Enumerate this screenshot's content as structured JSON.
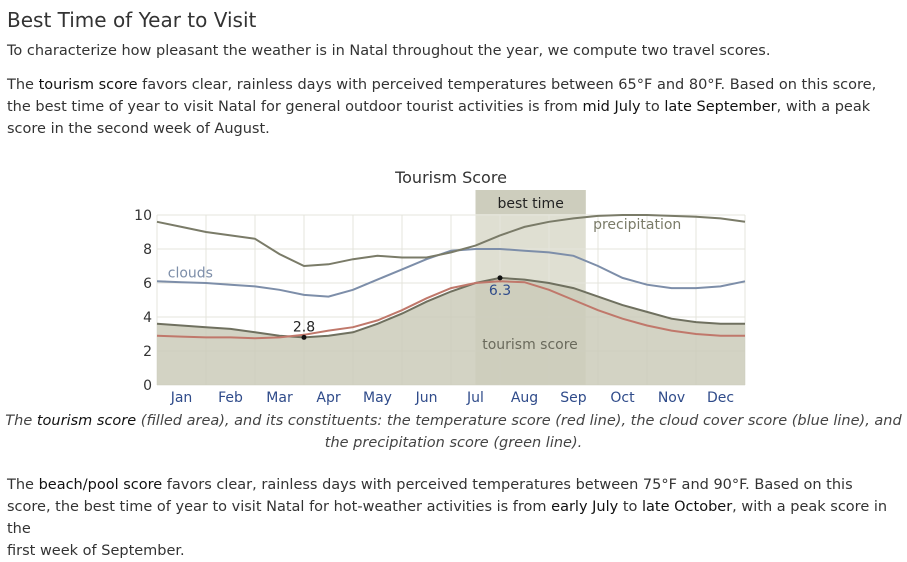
{
  "page": {
    "heading": "Best Time of Year to Visit",
    "intro": "To characterize how pleasant the weather is in Natal throughout the year, we compute two travel scores.",
    "tourism_paragraph": {
      "p1": "The ",
      "term": "tourism score",
      "p2": " favors clear, rainless days with perceived temperatures between 65°F and 80°F. Based on this score, the best time of year to visit Natal for general outdoor tourist activities is from ",
      "start": "mid July",
      "p3": " to ",
      "end": "late September",
      "p4": ", with a peak score in the second week of August."
    },
    "caption": {
      "p1": "The ",
      "term": "tourism score",
      "p2": " (filled area), and its constituents: the temperature score (red line), the cloud cover score (blue line), and the precipitation score (green line)."
    },
    "beach_paragraph": {
      "p1": "The ",
      "term": "beach/pool score",
      "p2": " favors clear, rainless days with perceived temperatures between 75°F and 90°F. Based on this score, the best time of year to visit Natal for hot-weather activities is from ",
      "start": "early July",
      "p3": " to ",
      "end": "late October",
      "p4": ", with a peak score in the",
      "p5": "first week of September."
    }
  },
  "chart_data": {
    "type": "area",
    "title": "Tourism Score",
    "months": [
      "Jan",
      "Feb",
      "Mar",
      "Apr",
      "May",
      "Jun",
      "Jul",
      "Aug",
      "Sep",
      "Oct",
      "Nov",
      "Dec"
    ],
    "ylim": [
      0,
      10
    ],
    "yticks": [
      0,
      2,
      4,
      6,
      8,
      10
    ],
    "x_range_months": [
      0,
      12
    ],
    "best_time": {
      "label": "best time",
      "start_month": 6.5,
      "end_month": 8.75
    },
    "series": [
      {
        "name": "tourism score",
        "role": "area",
        "color": "#6f705f",
        "fill": "#cbcbba",
        "x": [
          0,
          0.5,
          1,
          1.5,
          2,
          2.5,
          3,
          3.5,
          4,
          4.5,
          5,
          5.5,
          6,
          6.5,
          7,
          7.5,
          8,
          8.5,
          9,
          9.5,
          10,
          10.5,
          11,
          11.5,
          12
        ],
        "y": [
          3.6,
          3.5,
          3.4,
          3.3,
          3.1,
          2.9,
          2.8,
          2.9,
          3.1,
          3.6,
          4.2,
          4.9,
          5.5,
          6.0,
          6.3,
          6.2,
          6.0,
          5.7,
          5.2,
          4.7,
          4.3,
          3.9,
          3.7,
          3.6,
          3.6
        ]
      },
      {
        "name": "temperature score",
        "role": "line",
        "color": "#c0786b",
        "x": [
          0,
          0.5,
          1,
          1.5,
          2,
          2.5,
          3,
          3.5,
          4,
          4.5,
          5,
          5.5,
          6,
          6.5,
          7,
          7.5,
          8,
          8.5,
          9,
          9.5,
          10,
          10.5,
          11,
          11.5,
          12
        ],
        "y": [
          2.9,
          2.85,
          2.8,
          2.8,
          2.75,
          2.8,
          2.95,
          3.2,
          3.4,
          3.8,
          4.4,
          5.1,
          5.7,
          6.0,
          6.1,
          6.05,
          5.6,
          5.0,
          4.4,
          3.9,
          3.5,
          3.2,
          3.0,
          2.9,
          2.9
        ]
      },
      {
        "name": "clouds",
        "role": "line",
        "color": "#7d8ea9",
        "label": "clouds",
        "x": [
          0,
          0.5,
          1,
          1.5,
          2,
          2.5,
          3,
          3.5,
          4,
          4.5,
          5,
          5.5,
          6,
          6.5,
          7,
          7.5,
          8,
          8.5,
          9,
          9.5,
          10,
          10.5,
          11,
          11.5,
          12
        ],
        "y": [
          6.1,
          6.05,
          6.0,
          5.9,
          5.8,
          5.6,
          5.3,
          5.2,
          5.6,
          6.2,
          6.8,
          7.4,
          7.9,
          8.0,
          8.0,
          7.9,
          7.8,
          7.6,
          7.0,
          6.3,
          5.9,
          5.7,
          5.7,
          5.8,
          6.1
        ]
      },
      {
        "name": "precipitation",
        "role": "line",
        "color": "#7a7b68",
        "label": "precipitation",
        "x": [
          0,
          0.5,
          1,
          1.5,
          2,
          2.5,
          3,
          3.5,
          4,
          4.5,
          5,
          5.5,
          6,
          6.5,
          7,
          7.5,
          8,
          8.5,
          9,
          9.5,
          10,
          10.5,
          11,
          11.5,
          12
        ],
        "y": [
          9.6,
          9.3,
          9.0,
          8.8,
          8.6,
          7.7,
          7.0,
          7.1,
          7.4,
          7.6,
          7.5,
          7.5,
          7.8,
          8.2,
          8.8,
          9.3,
          9.6,
          9.8,
          9.95,
          10.0,
          10.0,
          9.95,
          9.9,
          9.8,
          9.6
        ]
      }
    ],
    "annotations": [
      {
        "text": "2.8",
        "x": 3.0,
        "y": 2.8,
        "kind": "min"
      },
      {
        "text": "6.3",
        "x": 7.0,
        "y": 6.3,
        "kind": "max"
      },
      {
        "text": "tourism score",
        "x": 7.0,
        "y": 2.4,
        "kind": "area-label"
      }
    ]
  }
}
